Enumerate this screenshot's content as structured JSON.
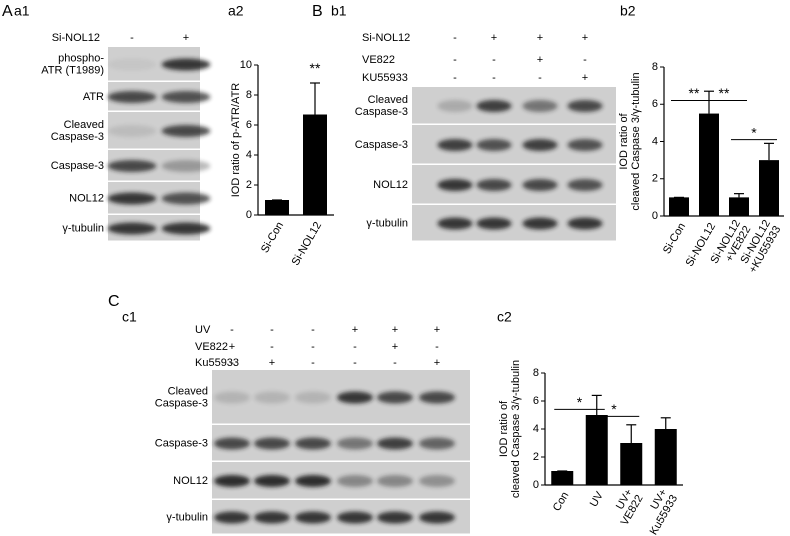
{
  "blots": [
    {
      "letter": "A",
      "sub": "a1",
      "conditions": [
        {
          "label": "Si-NOL12",
          "signs": [
            "-",
            "+"
          ]
        }
      ],
      "rows": [
        "phospho-\nATR (T1989)",
        "ATR",
        "Cleaved\nCaspase-3",
        "Caspase-3",
        "NOL12",
        "γ-tubulin"
      ]
    },
    {
      "letter": "B",
      "sub": "b1",
      "conditions": [
        {
          "label": "Si-NOL12",
          "signs": [
            "-",
            "+",
            "+",
            "+"
          ]
        },
        {
          "label": "VE822",
          "signs": [
            "-",
            "-",
            "+",
            "-"
          ]
        },
        {
          "label": "KU55933",
          "signs": [
            "-",
            "-",
            "-",
            "+"
          ]
        }
      ],
      "rows": [
        "Cleaved\nCaspase-3",
        "Caspase-3",
        "NOL12",
        "γ-tubulin"
      ]
    },
    {
      "letter": "C",
      "sub": "c1",
      "conditions": [
        {
          "label": "UV",
          "signs": [
            "-",
            "-",
            "-",
            "+",
            "+",
            "+"
          ]
        },
        {
          "label": "VE822",
          "signs": [
            "+",
            "-",
            "-",
            "-",
            "+",
            "-"
          ]
        },
        {
          "label": "Ku55933",
          "signs": [
            "-",
            "+",
            "-",
            "-",
            "-",
            "+"
          ]
        }
      ],
      "rows": [
        "Cleaved\nCaspase-3",
        "Caspase-3",
        "NOL12",
        "γ-tubulin"
      ]
    }
  ],
  "chart_data": [
    {
      "type": "bar",
      "title": "a2",
      "y_label": "IOD ratio of p-ATR/ATR",
      "categories": [
        "Si-Con",
        "Si-NOL12"
      ],
      "values": [
        1,
        6.7
      ],
      "errors": [
        0,
        2.1
      ],
      "color": "#000000",
      "ylim": [
        0,
        10
      ],
      "yticks": [
        0,
        2,
        4,
        6,
        8,
        10
      ],
      "significance": [
        {
          "from": 1,
          "to": 1,
          "label": "**",
          "level": 9.3
        }
      ]
    },
    {
      "type": "bar",
      "title": "b2",
      "y_label": "IOD ratio of\ncleaved Caspase 3/γ-tubulin",
      "categories": [
        "Si-Con",
        "Si-NOL12",
        "Si-NOL12\n+VE822",
        "Si-NOL12\n+KU55933"
      ],
      "values": [
        1,
        5.5,
        1.0,
        3.0
      ],
      "errors": [
        0,
        1.2,
        0.2,
        0.9
      ],
      "color": "#000000",
      "ylim": [
        0,
        8
      ],
      "yticks": [
        0,
        2,
        4,
        6,
        8
      ],
      "significance": [
        {
          "from": 0,
          "to": 1,
          "label": "**",
          "level": 6.2
        },
        {
          "from": 1,
          "to": 2,
          "label": "**",
          "level": 6.2
        },
        {
          "from": 2,
          "to": 3,
          "label": "*",
          "level": 4.1
        }
      ]
    },
    {
      "type": "bar",
      "title": "c2",
      "y_label": "IOD ratio of\ncleaved Caspase 3/γ-tubulin",
      "categories": [
        "Con",
        "UV",
        "UV+\nVE822",
        "UV+\nKu55933"
      ],
      "values": [
        1,
        5,
        3,
        4
      ],
      "errors": [
        0,
        1.4,
        1.3,
        0.8
      ],
      "color": "#000000",
      "ylim": [
        0,
        8
      ],
      "yticks": [
        0,
        2,
        4,
        6,
        8
      ],
      "significance": [
        {
          "from": 0,
          "to": 1,
          "label": "*",
          "level": 5.4
        },
        {
          "from": 1,
          "to": 2,
          "label": "*",
          "level": 4.9
        }
      ]
    }
  ]
}
